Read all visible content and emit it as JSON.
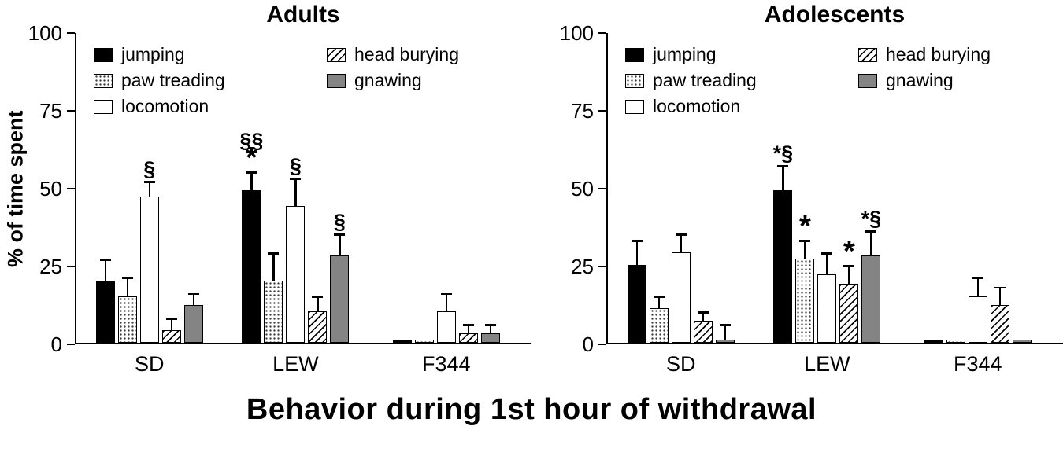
{
  "chart_data": {
    "type": "bar",
    "title": "Behavior during 1st hour of withdrawal",
    "ylabel": "% of time spent",
    "ylim": [
      0,
      100
    ],
    "yticks": [
      0,
      25,
      50,
      75,
      100
    ],
    "categories": [
      "SD",
      "LEW",
      "F344"
    ],
    "error_bars": "upper, T-cap",
    "legend_position": "top-left inside plot, two columns",
    "colors": {
      "black": "#000000",
      "gray": "#848484",
      "white": "#ffffff"
    },
    "behaviors": [
      {
        "name": "jumping",
        "pattern": "solid-black"
      },
      {
        "name": "paw treading",
        "pattern": "stippled"
      },
      {
        "name": "locomotion",
        "pattern": "open"
      },
      {
        "name": "head burying",
        "pattern": "hatched"
      },
      {
        "name": "gnawing",
        "pattern": "solid-gray"
      }
    ],
    "legend_columns": [
      [
        "jumping",
        "paw treading",
        "locomotion"
      ],
      [
        "head burying",
        "gnawing"
      ]
    ],
    "panels": [
      {
        "title": "Adults",
        "series": [
          {
            "name": "jumping",
            "values": [
              20,
              49,
              1
            ],
            "errors": [
              7,
              6,
              0.5
            ],
            "annotations": [
              [],
              [
                "§§",
                "*"
              ],
              []
            ]
          },
          {
            "name": "paw treading",
            "values": [
              15,
              20,
              1
            ],
            "errors": [
              6,
              9,
              0.5
            ],
            "annotations": [
              [],
              [],
              []
            ]
          },
          {
            "name": "locomotion",
            "values": [
              47,
              44,
              10
            ],
            "errors": [
              5,
              9,
              6
            ],
            "annotations": [
              [
                "§"
              ],
              [
                "§"
              ],
              []
            ]
          },
          {
            "name": "head burying",
            "values": [
              4,
              10,
              3
            ],
            "errors": [
              4,
              5,
              3
            ],
            "annotations": [
              [],
              [],
              []
            ]
          },
          {
            "name": "gnawing",
            "values": [
              12,
              28,
              3
            ],
            "errors": [
              4,
              7,
              3
            ],
            "annotations": [
              [],
              [
                "§"
              ],
              []
            ]
          }
        ]
      },
      {
        "title": "Adolescents",
        "series": [
          {
            "name": "jumping",
            "values": [
              25,
              49,
              1
            ],
            "errors": [
              8,
              8,
              0.5
            ],
            "annotations": [
              [],
              [
                "*§"
              ],
              []
            ]
          },
          {
            "name": "paw treading",
            "values": [
              11,
              27,
              1
            ],
            "errors": [
              4,
              6,
              0.5
            ],
            "annotations": [
              [],
              [
                "*"
              ],
              []
            ]
          },
          {
            "name": "locomotion",
            "values": [
              29,
              22,
              15
            ],
            "errors": [
              6,
              7,
              6
            ],
            "annotations": [
              [],
              [],
              []
            ]
          },
          {
            "name": "head burying",
            "values": [
              7,
              19,
              12
            ],
            "errors": [
              3,
              6,
              6
            ],
            "annotations": [
              [],
              [
                "*"
              ],
              []
            ]
          },
          {
            "name": "gnawing",
            "values": [
              1,
              28,
              1
            ],
            "errors": [
              5,
              8,
              0.5
            ],
            "annotations": [
              [],
              [
                "*§"
              ],
              []
            ]
          }
        ]
      }
    ]
  }
}
